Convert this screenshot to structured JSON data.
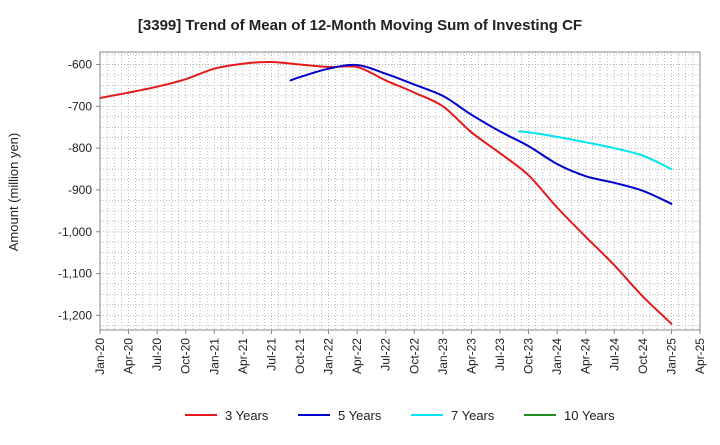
{
  "chart_data": {
    "type": "line",
    "title": "[3399]  Trend of Mean of 12-Month Moving Sum of Investing CF",
    "xlabel": "",
    "ylabel": "Amount (million yen)",
    "ylim": [
      -1235,
      -570
    ],
    "yticks": [
      -600,
      -700,
      -800,
      -900,
      -1000,
      -1100,
      -1200
    ],
    "ytick_labels": [
      "-600",
      "-700",
      "-800",
      "-900",
      "-1,000",
      "-1,100",
      "-1,200"
    ],
    "x_tick_labels": [
      "Jan-20",
      "Apr-20",
      "Jul-20",
      "Oct-20",
      "Jan-21",
      "Apr-21",
      "Jul-21",
      "Oct-21",
      "Jan-22",
      "Apr-22",
      "Jul-22",
      "Oct-22",
      "Jan-23",
      "Apr-23",
      "Jul-23",
      "Oct-23",
      "Jan-24",
      "Apr-24",
      "Jul-24",
      "Oct-24",
      "Jan-25",
      "Apr-25"
    ],
    "x_unit": "quarter index from Jan-20 (0) to Apr-25 (21)",
    "grid": true,
    "legend_position": "bottom",
    "series": [
      {
        "name": "3 Years",
        "color": "#e31a1c",
        "x": [
          0,
          1,
          2,
          3,
          4,
          5,
          6,
          7,
          8,
          9,
          10,
          11,
          12,
          13,
          14,
          15,
          16,
          17,
          18,
          19,
          20
        ],
        "values": [
          -680,
          -667,
          -653,
          -635,
          -610,
          -598,
          -594,
          -600,
          -606,
          -606,
          -638,
          -667,
          -700,
          -762,
          -812,
          -865,
          -942,
          -1012,
          -1080,
          -1155,
          -1220
        ]
      },
      {
        "name": "5 Years",
        "color": "#0000cc",
        "x": [
          6.67,
          7,
          8,
          9,
          10,
          11,
          12,
          13,
          14,
          15,
          16,
          17,
          18,
          19,
          20
        ],
        "values": [
          -638,
          -630,
          -610,
          -601,
          -622,
          -648,
          -675,
          -720,
          -760,
          -795,
          -838,
          -867,
          -883,
          -902,
          -933
        ]
      },
      {
        "name": "7 Years",
        "color": "#00e5ee",
        "x": [
          14.67,
          15,
          16,
          17,
          18,
          19,
          20
        ],
        "values": [
          -760,
          -762,
          -773,
          -786,
          -800,
          -818,
          -850
        ]
      },
      {
        "name": "10 Years",
        "color": "#1f8c1f",
        "x": [],
        "values": []
      }
    ]
  }
}
